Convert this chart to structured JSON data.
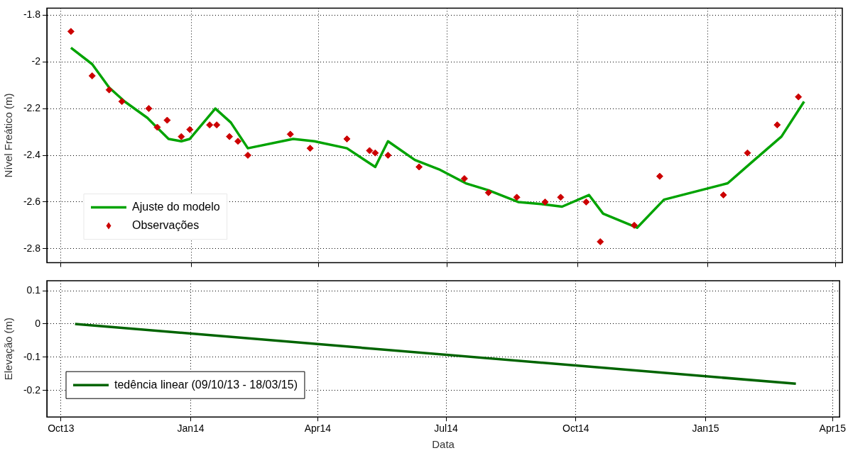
{
  "chart_data": [
    {
      "type": "line",
      "ylabel": "Nível Freático (m)",
      "xlim": [
        "2013-09-21",
        "2015-04-06"
      ],
      "ylim": [
        -2.86,
        -1.77
      ],
      "xticks": [
        {
          "value": "2013-10-01",
          "label": null
        },
        {
          "value": "2014-01-01",
          "label": null
        },
        {
          "value": "2014-04-01",
          "label": null
        },
        {
          "value": "2014-07-01",
          "label": null
        },
        {
          "value": "2014-10-01",
          "label": null
        },
        {
          "value": "2015-01-01",
          "label": null
        },
        {
          "value": "2015-04-01",
          "label": null
        }
      ],
      "yticks": [
        -2.8,
        -2.6,
        -2.4,
        -2.2,
        -2,
        -1.8
      ],
      "grid": true,
      "legend": "bottom left",
      "tick_labels": "y",
      "series": [
        {
          "name": "Ajuste do modelo",
          "marker": "none",
          "color": "#00a300",
          "x": [
            "2013-10-08",
            "2013-10-23",
            "2013-11-04",
            "2013-11-15",
            "2013-12-01",
            "2013-12-06",
            "2013-12-16",
            "2013-12-25",
            "2013-12-31",
            "2014-01-18",
            "2014-01-29",
            "2014-02-10",
            "2014-03-14",
            "2014-03-29",
            "2014-04-21",
            "2014-05-11",
            "2014-05-20",
            "2014-06-08",
            "2014-06-25",
            "2014-07-14",
            "2014-07-30",
            "2014-08-20",
            "2014-09-07",
            "2014-09-20",
            "2014-10-09",
            "2014-10-19",
            "2014-11-12",
            "2014-12-01",
            "2015-01-15",
            "2015-02-01",
            "2015-02-22",
            "2015-03-10"
          ],
          "values": [
            -1.94,
            -2.01,
            -2.11,
            -2.17,
            -2.24,
            -2.27,
            -2.33,
            -2.34,
            -2.33,
            -2.2,
            -2.26,
            -2.37,
            -2.33,
            -2.34,
            -2.37,
            -2.45,
            -2.34,
            -2.42,
            -2.46,
            -2.52,
            -2.55,
            -2.6,
            -2.61,
            -2.62,
            -2.57,
            -2.65,
            -2.71,
            -2.59,
            -2.52,
            -2.43,
            -2.32,
            -2.17
          ]
        },
        {
          "name": "Observações",
          "type": "scatter",
          "marker": "diamond",
          "color": "#cc0000",
          "x": [
            "2013-10-08",
            "2013-10-23",
            "2013-11-04",
            "2013-11-13",
            "2013-12-02",
            "2013-12-08",
            "2013-12-15",
            "2013-12-25",
            "2013-12-31",
            "2014-01-14",
            "2014-01-19",
            "2014-01-28",
            "2014-02-03",
            "2014-02-10",
            "2014-03-12",
            "2014-03-26",
            "2014-04-21",
            "2014-05-07",
            "2014-05-11",
            "2014-05-20",
            "2014-06-11",
            "2014-07-13",
            "2014-07-30",
            "2014-08-19",
            "2014-09-08",
            "2014-09-19",
            "2014-10-07",
            "2014-10-17",
            "2014-11-10",
            "2014-11-28",
            "2015-01-12",
            "2015-01-29",
            "2015-02-19",
            "2015-03-06"
          ],
          "values": [
            -1.87,
            -2.06,
            -2.12,
            -2.17,
            -2.2,
            -2.28,
            -2.25,
            -2.32,
            -2.29,
            -2.27,
            -2.27,
            -2.32,
            -2.34,
            -2.4,
            -2.31,
            -2.37,
            -2.33,
            -2.38,
            -2.39,
            -2.4,
            -2.45,
            -2.5,
            -2.56,
            -2.58,
            -2.6,
            -2.58,
            -2.6,
            -2.77,
            -2.7,
            -2.49,
            -2.57,
            -2.39,
            -2.27,
            -2.15
          ]
        }
      ]
    },
    {
      "type": "line",
      "xlabel": "Data",
      "ylabel": "Elevação (m)",
      "xlim": [
        "2013-09-21",
        "2015-04-06"
      ],
      "ylim": [
        -0.28,
        0.13
      ],
      "xticks": [
        {
          "value": "2013-10-01",
          "label": "Oct13"
        },
        {
          "value": "2014-01-01",
          "label": "Jan14"
        },
        {
          "value": "2014-04-01",
          "label": "Apr14"
        },
        {
          "value": "2014-07-01",
          "label": "Jul14"
        },
        {
          "value": "2014-10-01",
          "label": "Oct14"
        },
        {
          "value": "2015-01-01",
          "label": "Jan15"
        },
        {
          "value": "2015-04-01",
          "label": "Apr15"
        }
      ],
      "yticks": [
        -0.2,
        -0.1,
        0,
        0.1
      ],
      "grid": true,
      "legend": "bottom left",
      "series": [
        {
          "name": "tedência linear (09/10/13 - 18/03/15)",
          "color": "#006400",
          "x": [
            "2013-10-11",
            "2015-03-06"
          ],
          "values": [
            0,
            -0.18
          ]
        }
      ]
    }
  ]
}
